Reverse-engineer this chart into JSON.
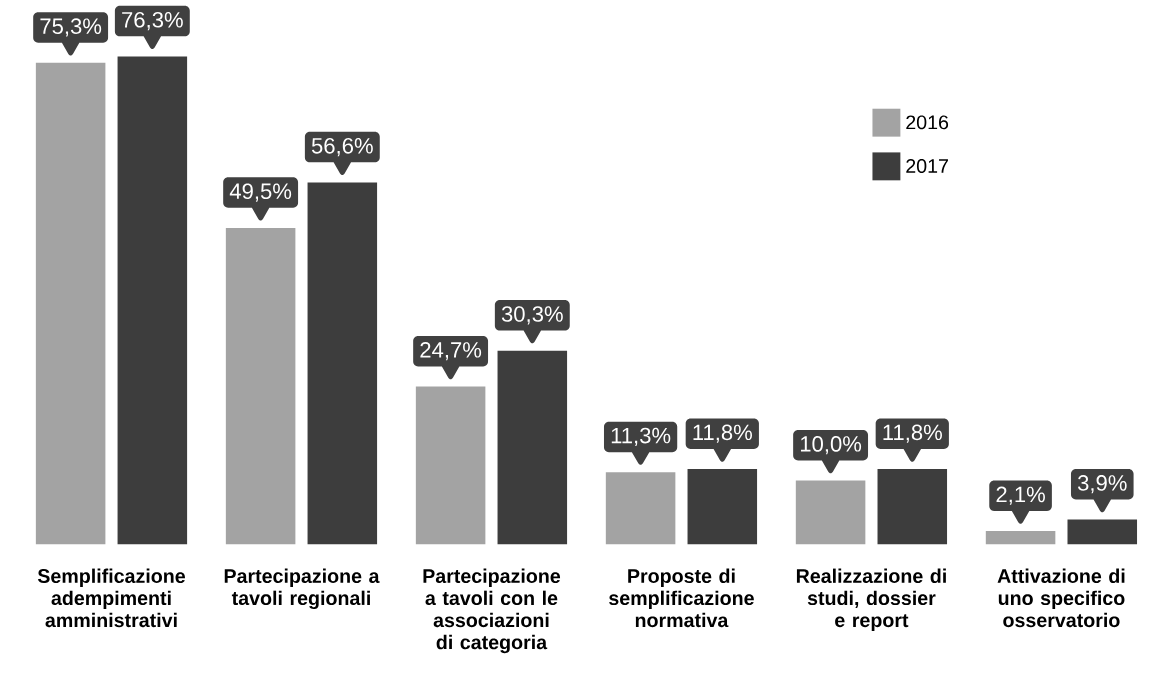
{
  "chart_data": {
    "type": "bar",
    "categories": [
      "Semplificazione adempimenti amministrativi",
      "Partecipazione a tavoli regionali",
      "Partecipazione a tavoli con le associazioni di categoria",
      "Proposte di semplificazione normativa",
      "Realizzazione di studi, dossier e report",
      "Attivazione di uno specifico osservatorio"
    ],
    "series": [
      {
        "name": "2016",
        "color": "#a3a3a3",
        "values": [
          75.3,
          49.5,
          24.7,
          11.3,
          10.0,
          2.1
        ],
        "value_labels": [
          "75,3%",
          "49,5%",
          "24,7%",
          "11,3%",
          "10,0%",
          "2,1%"
        ]
      },
      {
        "name": "2017",
        "color": "#3d3d3d",
        "values": [
          76.3,
          56.6,
          30.3,
          11.8,
          11.8,
          3.9
        ],
        "value_labels": [
          "76,3%",
          "56,6%",
          "30,3%",
          "11,8%",
          "11,8%",
          "3,9%"
        ]
      }
    ],
    "legend": "top right"
  }
}
